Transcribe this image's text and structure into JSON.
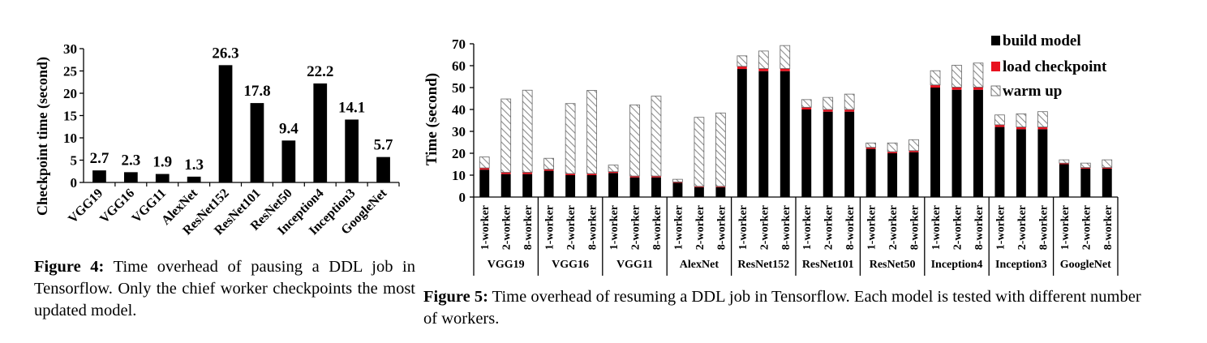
{
  "figure4": {
    "caption_label": "Figure 4:",
    "caption_text": "Time overhead of pausing a DDL job in Tensorflow. Only the chief worker checkpoints the most updated model."
  },
  "figure5": {
    "caption_label": "Figure 5:",
    "caption_text": "Time overhead of resuming a DDL job in Tensorflow. Each model is tested with different number of workers."
  },
  "colors": {
    "bar": "#000000",
    "load": "#e8121f",
    "hatch": "#8c8c8c"
  },
  "chart_data": [
    {
      "type": "bar",
      "title": "",
      "xlabel": "",
      "ylabel": "Checkpoint time (second)",
      "ylim": [
        0,
        30
      ],
      "yticks": [
        "0",
        "5",
        "10",
        "15",
        "20",
        "25",
        "30"
      ],
      "categories": [
        "VGG19",
        "VGG16",
        "VGG11",
        "AlexNet",
        "ResNet152",
        "ResNet101",
        "ResNet50",
        "Inception4",
        "Inception3",
        "GoogleNet"
      ],
      "values": [
        2.7,
        2.3,
        1.9,
        1.3,
        26.3,
        17.8,
        9.4,
        22.2,
        14.1,
        5.7
      ],
      "data_labels": [
        "2.7",
        "2.3",
        "1.9",
        "1.3",
        "26.3",
        "17.8",
        "9.4",
        "22.2",
        "14.1",
        "5.7"
      ],
      "grid": false
    },
    {
      "type": "bar",
      "stacked": true,
      "title": "",
      "xlabel": "",
      "ylabel": "Time (second)",
      "ylim": [
        0,
        70
      ],
      "yticks": [
        "0",
        "10",
        "20",
        "30",
        "40",
        "50",
        "60",
        "70"
      ],
      "groups": [
        "VGG19",
        "VGG16",
        "VGG11",
        "AlexNet",
        "ResNet152",
        "ResNet101",
        "ResNet50",
        "Inception4",
        "Inception3",
        "GoogleNet"
      ],
      "subcategories": [
        "1-worker",
        "2-worker",
        "8-worker"
      ],
      "legend": [
        "build model",
        "load checkpoint",
        "warm up"
      ],
      "legend_position": "top-right",
      "series": [
        {
          "name": "build model",
          "values": [
            [
              12.5,
              10.5,
              10.5
            ],
            [
              12,
              10,
              10
            ],
            [
              11,
              9,
              9
            ],
            [
              6.5,
              4.5,
              4.5
            ],
            [
              58.5,
              57.5,
              57.5
            ],
            [
              40,
              39,
              39
            ],
            [
              22,
              20,
              20.5
            ],
            [
              50,
              49,
              49
            ],
            [
              32,
              31,
              31
            ],
            [
              15,
              13,
              13
            ]
          ]
        },
        {
          "name": "load checkpoint",
          "values": [
            [
              0.8,
              0.8,
              0.8
            ],
            [
              0.7,
              0.7,
              0.7
            ],
            [
              0.6,
              0.6,
              0.6
            ],
            [
              0.4,
              0.4,
              0.4
            ],
            [
              1.2,
              1.2,
              1.2
            ],
            [
              1.0,
              1.0,
              1.0
            ],
            [
              0.7,
              0.7,
              0.7
            ],
            [
              1.2,
              1.2,
              1.2
            ],
            [
              1.0,
              1.0,
              1.0
            ],
            [
              0.5,
              0.5,
              0.5
            ]
          ]
        },
        {
          "name": "warm up",
          "values": [
            [
              5,
              33.5,
              37.5
            ],
            [
              5,
              32,
              38
            ],
            [
              3,
              32.5,
              36.5
            ],
            [
              1.2,
              31.5,
              33.5
            ],
            [
              4.8,
              8,
              10.5
            ],
            [
              3.5,
              5.5,
              7
            ],
            [
              2,
              4,
              5
            ],
            [
              6.5,
              10,
              11
            ],
            [
              4.5,
              6,
              7
            ],
            [
              1.5,
              2,
              3.5
            ]
          ]
        }
      ],
      "grid": false
    }
  ]
}
